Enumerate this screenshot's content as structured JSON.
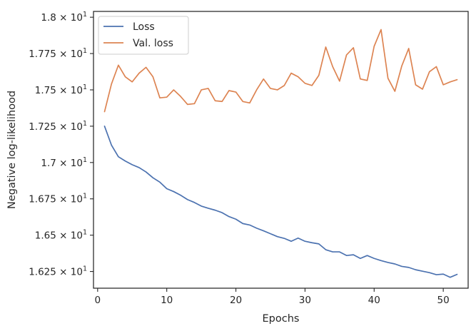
{
  "chart_data": {
    "type": "line",
    "xlabel": "Epochs",
    "ylabel": "Negative log-likelihood",
    "xlim": [
      -0.6,
      53.6
    ],
    "ylim": [
      16.135,
      18.04
    ],
    "x_ticks": [
      {
        "value": 0,
        "label": "0"
      },
      {
        "value": 10,
        "label": "10"
      },
      {
        "value": 20,
        "label": "20"
      },
      {
        "value": 30,
        "label": "30"
      },
      {
        "value": 40,
        "label": "40"
      },
      {
        "value": 50,
        "label": "50"
      }
    ],
    "y_ticks": [
      {
        "value": 16.25,
        "mant": "1.625"
      },
      {
        "value": 16.5,
        "mant": "1.65"
      },
      {
        "value": 16.75,
        "mant": "1.675"
      },
      {
        "value": 17.0,
        "mant": "1.7"
      },
      {
        "value": 17.25,
        "mant": "1.725"
      },
      {
        "value": 17.5,
        "mant": "1.75"
      },
      {
        "value": 17.75,
        "mant": "1.775"
      },
      {
        "value": 18.0,
        "mant": "1.8"
      }
    ],
    "y_tick_suffix": "10",
    "y_tick_exponent": "1",
    "legend_position": "upper-left",
    "grid": false,
    "series": [
      {
        "name": "Loss",
        "color": "#4c72b0",
        "x": [
          1,
          2,
          3,
          4,
          5,
          6,
          7,
          8,
          9,
          10,
          11,
          12,
          13,
          14,
          15,
          16,
          17,
          18,
          19,
          20,
          21,
          22,
          23,
          24,
          25,
          26,
          27,
          28,
          29,
          30,
          31,
          32,
          33,
          34,
          35,
          36,
          37,
          38,
          39,
          40,
          41,
          42,
          43,
          44,
          45,
          46,
          47,
          48,
          49,
          50,
          51,
          52
        ],
        "y": [
          17.25,
          17.12,
          17.04,
          17.01,
          16.985,
          16.965,
          16.935,
          16.895,
          16.865,
          16.82,
          16.8,
          16.775,
          16.745,
          16.725,
          16.7,
          16.685,
          16.672,
          16.655,
          16.628,
          16.61,
          16.58,
          16.57,
          16.548,
          16.53,
          16.51,
          16.49,
          16.478,
          16.458,
          16.48,
          16.458,
          16.448,
          16.44,
          16.4,
          16.385,
          16.385,
          16.36,
          16.365,
          16.34,
          16.36,
          16.34,
          16.325,
          16.312,
          16.302,
          16.285,
          16.278,
          16.262,
          16.252,
          16.242,
          16.228,
          16.232,
          16.21,
          16.23
        ]
      },
      {
        "name": "Val. loss",
        "color": "#dd8452",
        "x": [
          1,
          2,
          3,
          4,
          5,
          6,
          7,
          8,
          9,
          10,
          11,
          12,
          13,
          14,
          15,
          16,
          17,
          18,
          19,
          20,
          21,
          22,
          23,
          24,
          25,
          26,
          27,
          28,
          29,
          30,
          31,
          32,
          33,
          34,
          35,
          36,
          37,
          38,
          39,
          40,
          41,
          42,
          43,
          44,
          45,
          46,
          47,
          48,
          49,
          50,
          51,
          52
        ],
        "y": [
          17.35,
          17.54,
          17.67,
          17.59,
          17.555,
          17.615,
          17.655,
          17.59,
          17.445,
          17.45,
          17.5,
          17.455,
          17.4,
          17.405,
          17.5,
          17.51,
          17.425,
          17.42,
          17.495,
          17.485,
          17.42,
          17.41,
          17.5,
          17.575,
          17.51,
          17.5,
          17.53,
          17.615,
          17.59,
          17.545,
          17.53,
          17.6,
          17.795,
          17.66,
          17.56,
          17.74,
          17.79,
          17.575,
          17.565,
          17.8,
          17.915,
          17.58,
          17.49,
          17.665,
          17.785,
          17.535,
          17.505,
          17.625,
          17.66,
          17.535,
          17.555,
          17.57
        ]
      }
    ]
  }
}
